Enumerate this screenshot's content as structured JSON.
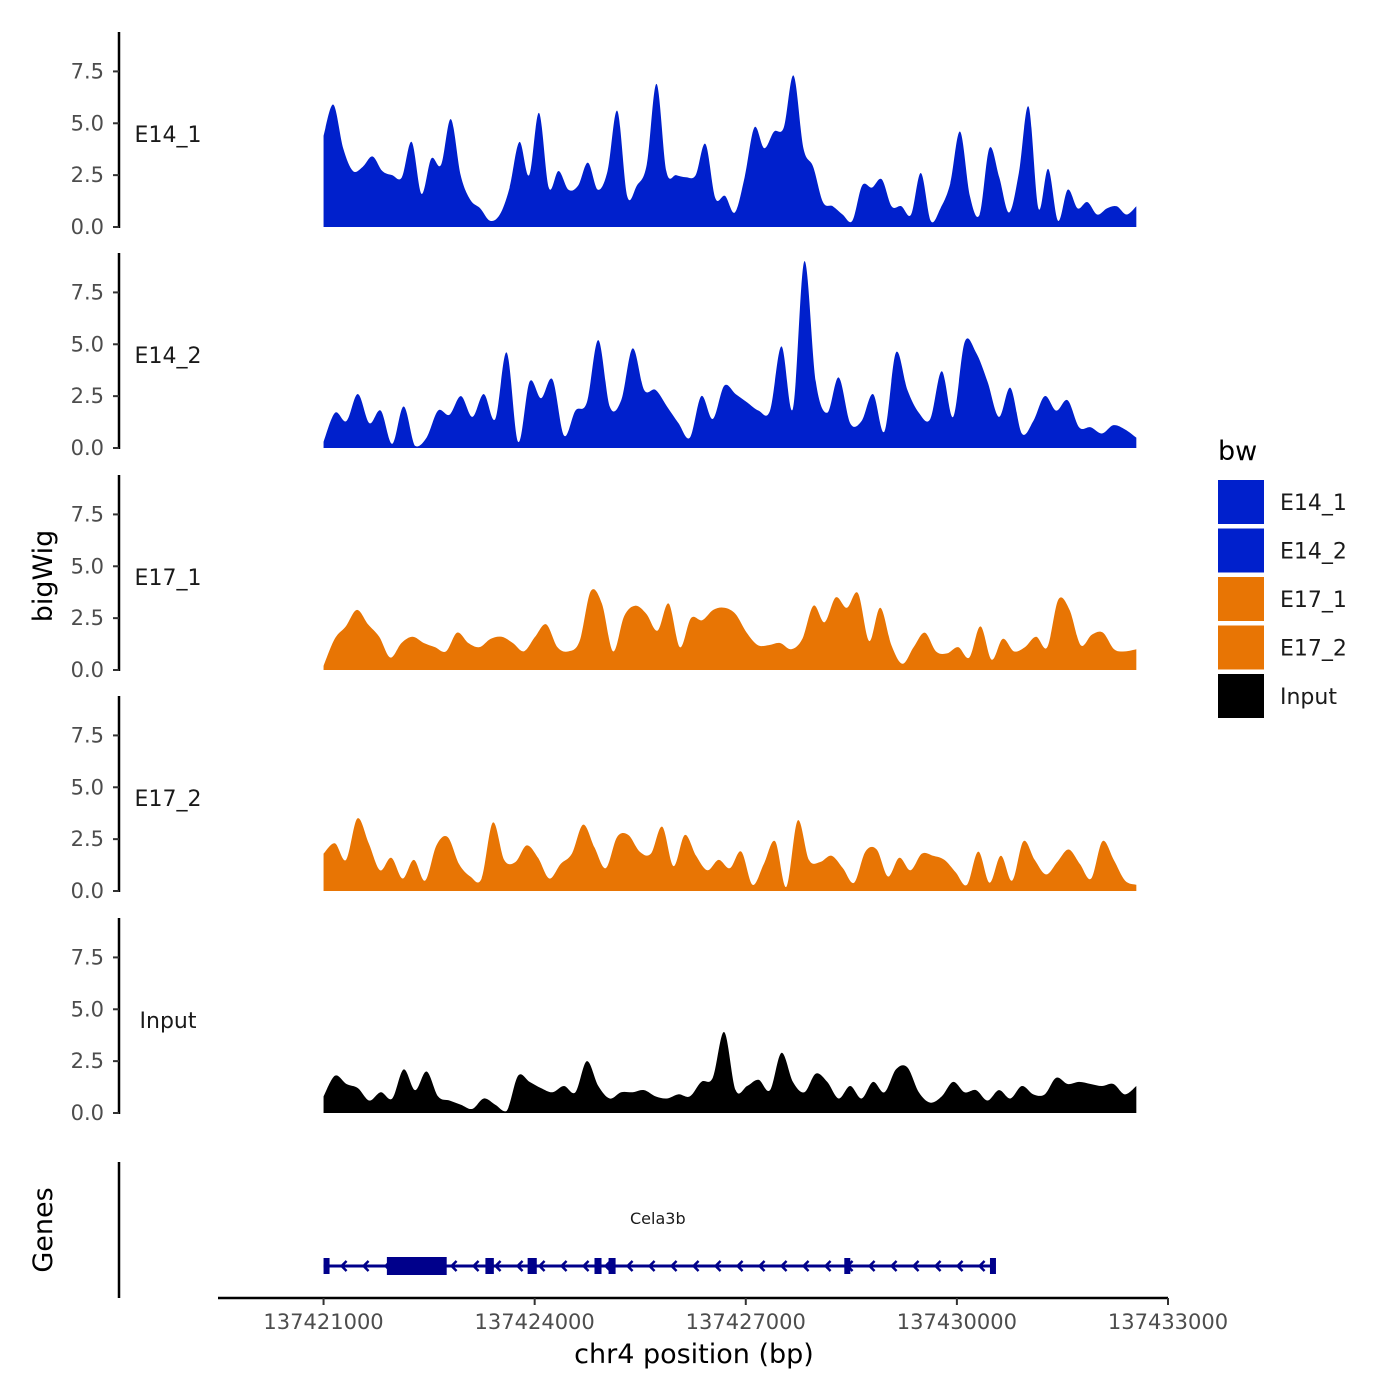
{
  "chart_data": {
    "type": "area",
    "title": "",
    "chromosome": "chr4",
    "xlabel": "chr4 position (bp)",
    "ylabel": "bigWig",
    "genes_label": "Genes",
    "xlim": [
      137419500,
      137433000
    ],
    "x_ticks": [
      137421000,
      137424000,
      137427000,
      137430000,
      137433000
    ],
    "x_tick_labels": [
      "137421000",
      "137424000",
      "137427000",
      "137430000",
      "137433000"
    ],
    "ylim": [
      0,
      9.4
    ],
    "y_ticks": [
      0,
      2.5,
      5,
      7.5
    ],
    "y_tick_labels": [
      "0.0",
      "2.5",
      "5.0",
      "7.5"
    ],
    "data_x_range": [
      137421000,
      137432550
    ],
    "legend": {
      "title": "bw",
      "entries": [
        {
          "label": "E14_1",
          "color": "#0020CC"
        },
        {
          "label": "E14_2",
          "color": "#0020CC"
        },
        {
          "label": "E17_1",
          "color": "#E87504"
        },
        {
          "label": "E17_2",
          "color": "#E87504"
        },
        {
          "label": "Input",
          "color": "#000000"
        }
      ]
    },
    "series": [
      {
        "name": "E14_1",
        "color": "#0020CC",
        "values": [
          4.4,
          5.9,
          3.8,
          2.7,
          2.9,
          3.4,
          2.7,
          2.5,
          2.4,
          4.1,
          1.6,
          3.3,
          3.0,
          5.2,
          2.5,
          1.3,
          0.9,
          0.3,
          0.6,
          1.9,
          4.1,
          2.5,
          5.5,
          1.9,
          2.7,
          1.8,
          2.0,
          3.1,
          1.8,
          2.7,
          5.6,
          1.5,
          2.0,
          3.0,
          6.9,
          2.7,
          2.5,
          2.4,
          2.5,
          4.0,
          1.4,
          1.5,
          0.7,
          2.4,
          4.8,
          3.8,
          4.6,
          4.8,
          7.3,
          3.8,
          2.9,
          1.2,
          1.0,
          0.6,
          0.3,
          2.0,
          1.9,
          2.3,
          1.0,
          1.0,
          0.6,
          2.6,
          0.3,
          0.9,
          2.1,
          4.6,
          1.5,
          0.6,
          3.8,
          2.4,
          0.7,
          2.6,
          5.8,
          0.9,
          2.8,
          0.3,
          1.8,
          0.9,
          1.2,
          0.6,
          0.9,
          1.0,
          0.6,
          1.0
        ]
      },
      {
        "name": "E14_2",
        "color": "#0020CC",
        "values": [
          0.3,
          1.7,
          1.3,
          2.6,
          1.2,
          1.8,
          0.2,
          2.0,
          0.1,
          0.5,
          1.8,
          1.6,
          2.5,
          1.5,
          2.6,
          1.4,
          4.6,
          0.3,
          3.2,
          2.4,
          3.3,
          0.6,
          1.8,
          2.2,
          5.2,
          2.0,
          2.3,
          4.8,
          2.8,
          2.8,
          2.0,
          1.2,
          0.5,
          2.5,
          1.4,
          3.0,
          2.6,
          2.2,
          1.8,
          1.8,
          4.9,
          1.9,
          9.0,
          3.2,
          1.7,
          3.4,
          1.2,
          1.3,
          2.6,
          0.8,
          4.6,
          2.8,
          1.7,
          1.4,
          3.7,
          1.5,
          5.1,
          4.6,
          3.2,
          1.5,
          2.9,
          0.7,
          1.3,
          2.5,
          1.8,
          2.3,
          1.0,
          1.0,
          0.7,
          1.1,
          0.9,
          0.5
        ]
      },
      {
        "name": "E17_1",
        "color": "#E87504",
        "values": [
          0.2,
          1.5,
          2.1,
          2.9,
          2.2,
          1.6,
          0.6,
          1.3,
          1.6,
          1.3,
          1.1,
          0.9,
          1.8,
          1.3,
          1.1,
          1.5,
          1.6,
          1.3,
          0.9,
          1.6,
          2.2,
          1.1,
          0.9,
          1.4,
          3.8,
          3.2,
          0.9,
          2.6,
          3.1,
          2.7,
          1.9,
          3.2,
          1.1,
          2.5,
          2.4,
          2.9,
          3.0,
          2.7,
          1.8,
          1.2,
          1.2,
          1.3,
          1.0,
          1.5,
          3.1,
          2.3,
          3.5,
          3.0,
          3.7,
          1.4,
          3.0,
          1.2,
          0.3,
          1.1,
          1.8,
          0.9,
          0.8,
          1.1,
          0.6,
          2.1,
          0.5,
          1.5,
          0.9,
          1.1,
          1.6,
          1.1,
          3.4,
          2.9,
          1.2,
          1.7,
          1.8,
          1.0,
          0.9,
          1.0
        ]
      },
      {
        "name": "E17_2",
        "color": "#E87504",
        "values": [
          1.8,
          2.3,
          1.5,
          3.5,
          2.3,
          1.0,
          1.6,
          0.6,
          1.5,
          0.5,
          2.2,
          2.6,
          1.3,
          0.7,
          0.6,
          3.3,
          1.5,
          1.4,
          2.2,
          1.6,
          0.6,
          1.3,
          1.8,
          3.2,
          2.1,
          1.1,
          2.6,
          2.7,
          1.9,
          1.8,
          3.1,
          1.2,
          2.7,
          1.7,
          1.0,
          1.5,
          1.1,
          1.9,
          0.3,
          1.3,
          2.4,
          0.2,
          3.4,
          1.5,
          1.4,
          1.7,
          1.1,
          0.4,
          1.9,
          2.0,
          0.7,
          1.6,
          1.0,
          1.8,
          1.7,
          1.5,
          0.9,
          0.3,
          1.9,
          0.4,
          1.7,
          0.5,
          2.4,
          1.5,
          0.8,
          1.4,
          2.0,
          1.3,
          0.6,
          2.4,
          1.5,
          0.5,
          0.3
        ]
      },
      {
        "name": "Input",
        "color": "#000000",
        "values": [
          0.8,
          1.8,
          1.4,
          1.2,
          0.6,
          1.0,
          0.7,
          2.1,
          1.1,
          2.0,
          0.8,
          0.6,
          0.4,
          0.2,
          0.7,
          0.4,
          0.1,
          1.8,
          1.5,
          1.2,
          1.0,
          1.3,
          1.0,
          2.5,
          1.3,
          0.7,
          1.0,
          1.0,
          1.1,
          0.8,
          0.7,
          0.9,
          0.8,
          1.5,
          1.7,
          3.9,
          1.1,
          1.3,
          1.6,
          1.1,
          2.9,
          1.5,
          1.0,
          1.9,
          1.5,
          0.7,
          1.3,
          0.7,
          1.5,
          1.0,
          2.1,
          2.2,
          1.0,
          0.5,
          0.8,
          1.5,
          1.0,
          1.1,
          0.6,
          1.1,
          0.7,
          1.3,
          0.9,
          0.9,
          1.7,
          1.4,
          1.5,
          1.4,
          1.3,
          1.4,
          0.9,
          1.3
        ]
      }
    ],
    "genes": [
      {
        "name": "Cela3b",
        "strand": "-",
        "start": 137421000,
        "end": 137430500,
        "exons": [
          [
            137421000,
            137421060
          ],
          [
            137421900,
            137422750
          ],
          [
            137423300,
            137423420
          ],
          [
            137423900,
            137424030
          ],
          [
            137424850,
            137424950
          ],
          [
            137425050,
            137425150
          ],
          [
            137428400,
            137428480
          ],
          [
            137430470,
            137430530
          ]
        ],
        "thick_exon": [
          137421900,
          137422750
        ]
      }
    ]
  }
}
